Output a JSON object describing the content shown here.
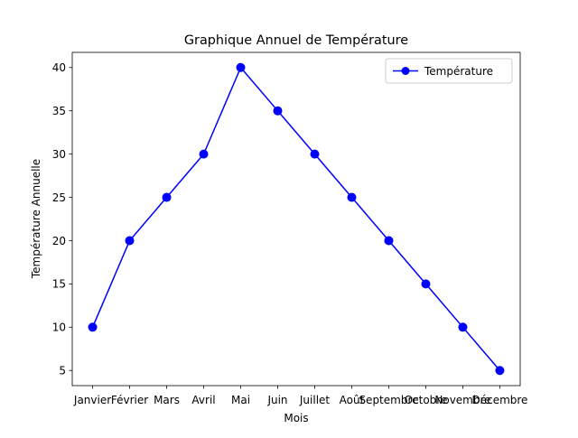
{
  "chart_data": {
    "type": "line",
    "title": "Graphique Annuel de Température",
    "xlabel": "Mois",
    "ylabel": "Température Annuelle",
    "categories": [
      "Janvier",
      "Février",
      "Mars",
      "Avril",
      "Mai",
      "Juin",
      "Juillet",
      "Août",
      "Septembre",
      "Octobre",
      "Novembre",
      "Décembre"
    ],
    "series": [
      {
        "name": "Température",
        "values": [
          10,
          20,
          25,
          30,
          40,
          35,
          30,
          25,
          20,
          15,
          10,
          5
        ],
        "color": "#0000ff",
        "marker": "circle"
      }
    ],
    "ylim": [
      3.25,
      41.75
    ],
    "yticks": [
      5,
      10,
      15,
      20,
      25,
      30,
      35,
      40
    ],
    "grid": false,
    "legend_position": "upper right"
  }
}
